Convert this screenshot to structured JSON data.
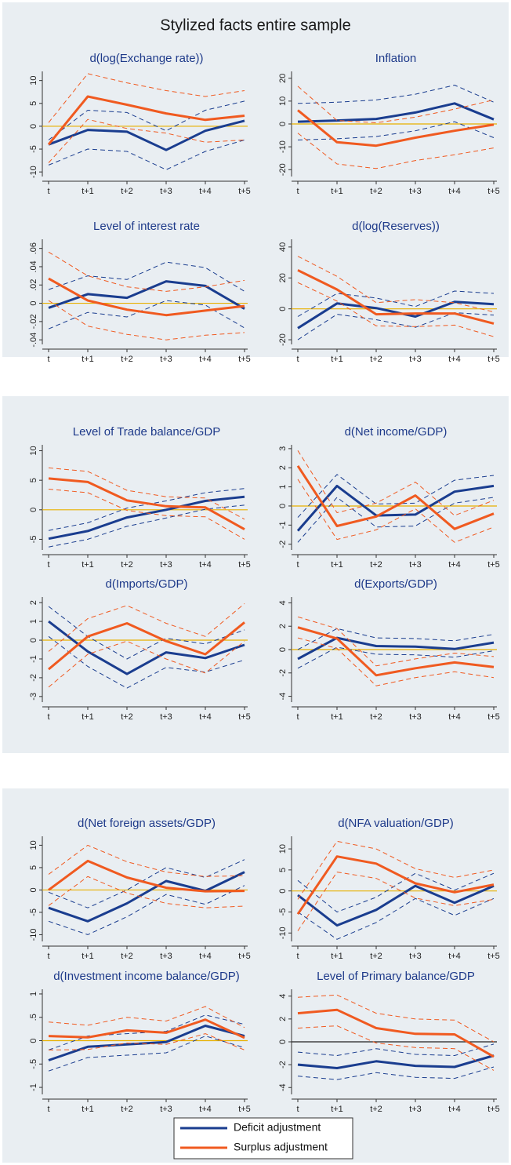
{
  "title": "Stylized facts entire sample",
  "legend": [
    {
      "name": "Deficit adjustment",
      "color": "#1a3d8f"
    },
    {
      "name": "Surplus adjustment",
      "color": "#f05a20"
    }
  ],
  "chart_data": [
    {
      "type": "line",
      "title": "d(log(Exchange rate))",
      "categories": [
        "t",
        "t+1",
        "t+2",
        "t+3",
        "t+4",
        "t+5"
      ],
      "ylim": [
        -11,
        12
      ],
      "yticks": [
        -10,
        -5,
        0,
        5,
        10
      ],
      "hline": {
        "value": 0,
        "color": "#e8b000"
      },
      "series": [
        {
          "values": [
            -4,
            -0.8,
            -1.2,
            -5.2,
            -1,
            1.2
          ],
          "upper": [
            -3,
            3.5,
            3,
            -1,
            3.5,
            5.5
          ],
          "lower": [
            -8.5,
            -5,
            -5.5,
            -9.5,
            -5.5,
            -3
          ]
        },
        {
          "values": [
            -4,
            6.5,
            4.7,
            2.8,
            1.4,
            2.3
          ],
          "upper": [
            0.8,
            11.5,
            9.5,
            7.8,
            6.5,
            7.8
          ],
          "lower": [
            -8,
            1.5,
            -0.5,
            -1.5,
            -3.5,
            -3
          ]
        }
      ]
    },
    {
      "type": "line",
      "title": "Inflation",
      "categories": [
        "t",
        "t+1",
        "t+2",
        "t+3",
        "t+4",
        "t+5"
      ],
      "ylim": [
        -23,
        23
      ],
      "yticks": [
        -20,
        -10,
        0,
        10,
        20
      ],
      "hline": {
        "value": 0,
        "color": "#e8b000"
      },
      "series": [
        {
          "values": [
            1,
            1.5,
            2.2,
            5,
            9,
            2
          ],
          "upper": [
            9,
            9.5,
            10.5,
            13,
            17,
            9.5
          ],
          "lower": [
            -7,
            -6.5,
            -5.5,
            -3,
            1,
            -6
          ]
        },
        {
          "values": [
            6,
            -8,
            -9.5,
            -6,
            -3,
            -0.3
          ],
          "upper": [
            16.5,
            1.5,
            0.5,
            3,
            6.5,
            10.5
          ],
          "lower": [
            -4,
            -17.5,
            -19.5,
            -16,
            -13.5,
            -10.5
          ]
        }
      ]
    },
    {
      "type": "line",
      "title": "Level of interest rate",
      "categories": [
        "t",
        "t+1",
        "t+2",
        "t+3",
        "t+4",
        "t+5"
      ],
      "ylim": [
        -0.045,
        0.07
      ],
      "yticks": [
        {
          "value": -0.04,
          "label": "-.04"
        },
        {
          "value": -0.02,
          "label": "-.02"
        },
        0,
        {
          "value": 0.02,
          "label": ".02"
        },
        {
          "value": 0.04,
          "label": ".04"
        },
        {
          "value": 0.06,
          "label": ".06"
        }
      ],
      "hline": {
        "value": 0,
        "color": "#e8b000"
      },
      "series": [
        {
          "values": [
            -0.005,
            0.01,
            0.006,
            0.024,
            0.019,
            -0.006
          ],
          "upper": [
            0.015,
            0.03,
            0.026,
            0.045,
            0.039,
            0.013
          ],
          "lower": [
            -0.028,
            -0.01,
            -0.015,
            0.003,
            -0.002,
            -0.027
          ]
        },
        {
          "values": [
            0.027,
            0.003,
            -0.007,
            -0.013,
            -0.008,
            -0.003
          ],
          "upper": [
            0.056,
            0.03,
            0.018,
            0.013,
            0.018,
            0.025
          ],
          "lower": [
            0.003,
            -0.025,
            -0.034,
            -0.04,
            -0.035,
            -0.032
          ]
        }
      ]
    },
    {
      "type": "line",
      "title": "d(log(Reserves))",
      "categories": [
        "t",
        "t+1",
        "t+2",
        "t+3",
        "t+4",
        "t+5"
      ],
      "ylim": [
        -23,
        45
      ],
      "yticks": [
        -20,
        0,
        20,
        40
      ],
      "hline": {
        "value": 0,
        "color": "#e8b000"
      },
      "series": [
        {
          "values": [
            -12.5,
            3.5,
            0.5,
            -5,
            4.5,
            3
          ],
          "upper": [
            -5,
            10,
            7,
            1.5,
            11.5,
            10
          ],
          "lower": [
            -20,
            -3.5,
            -7,
            -12,
            -2.5,
            -4
          ]
        },
        {
          "values": [
            25,
            12.5,
            -3.5,
            -3,
            -3,
            -9.5
          ],
          "upper": [
            34,
            21,
            4,
            6,
            4,
            -2
          ],
          "lower": [
            17,
            5,
            -11,
            -11.5,
            -10.5,
            -18
          ]
        }
      ]
    },
    {
      "type": "line",
      "title": "Level of Trade balance/GDP",
      "categories": [
        "t",
        "t+1",
        "t+2",
        "t+3",
        "t+4",
        "t+5"
      ],
      "ylim": [
        -6.8,
        11
      ],
      "yticks": [
        -5,
        0,
        5,
        10
      ],
      "hline": {
        "value": 0,
        "color": "#e8b000"
      },
      "series": [
        {
          "values": [
            -4.9,
            -3.6,
            -1.3,
            0,
            1.5,
            2.2
          ],
          "upper": [
            -3.5,
            -2.2,
            0.3,
            1.5,
            2.9,
            3.6
          ],
          "lower": [
            -6.3,
            -5,
            -2.8,
            -1.4,
            0.1,
            0.8
          ]
        },
        {
          "values": [
            5.3,
            4.7,
            1.6,
            0.6,
            0.4,
            -3.3
          ],
          "upper": [
            7.1,
            6.5,
            3.3,
            2.2,
            2,
            -1.6
          ],
          "lower": [
            3.5,
            2.9,
            -0.1,
            -1,
            -1.2,
            -5
          ]
        }
      ]
    },
    {
      "type": "line",
      "title": "d(Net income/GDP)",
      "categories": [
        "t",
        "t+1",
        "t+2",
        "t+3",
        "t+4",
        "t+5"
      ],
      "ylim": [
        -2.3,
        3.2
      ],
      "yticks": [
        -2,
        -1,
        0,
        1,
        2,
        3
      ],
      "hline": {
        "value": 0,
        "color": "#e8b000"
      },
      "series": [
        {
          "values": [
            -1.3,
            1.05,
            -0.5,
            -0.45,
            0.75,
            1.05
          ],
          "upper": [
            -0.6,
            1.65,
            0.1,
            0.15,
            1.35,
            1.6
          ],
          "lower": [
            -1.9,
            0.45,
            -1.1,
            -1.05,
            0.15,
            0.45
          ]
        },
        {
          "values": [
            2.1,
            -1.05,
            -0.55,
            0.55,
            -1.2,
            -0.4
          ],
          "upper": [
            2.9,
            -0.35,
            0.15,
            1.25,
            -0.5,
            0.3
          ],
          "lower": [
            1.4,
            -1.75,
            -1.25,
            -0.15,
            -1.9,
            -1.1
          ]
        }
      ]
    },
    {
      "type": "line",
      "title": "d(Imports/GDP)",
      "categories": [
        "t",
        "t+1",
        "t+2",
        "t+3",
        "t+4",
        "t+5"
      ],
      "ylim": [
        -3.3,
        2.3
      ],
      "yticks": [
        -3,
        -2,
        -1,
        0,
        1,
        2
      ],
      "hline": {
        "value": 0,
        "color": "#e8b000"
      },
      "series": [
        {
          "values": [
            1,
            -0.6,
            -1.8,
            -0.65,
            -0.95,
            -0.25
          ],
          "upper": [
            1.8,
            0.2,
            -1,
            0.1,
            -0.2,
            0.55
          ],
          "lower": [
            0.2,
            -1.4,
            -2.55,
            -1.45,
            -1.7,
            -1.05
          ]
        },
        {
          "values": [
            -1.55,
            0.2,
            0.9,
            -0.05,
            -0.75,
            0.95
          ],
          "upper": [
            -0.6,
            1.15,
            1.85,
            0.9,
            0.2,
            1.95
          ],
          "lower": [
            -2.5,
            -0.75,
            -0.05,
            -1,
            -1.75,
            -0.05
          ]
        }
      ]
    },
    {
      "type": "line",
      "title": "d(Exports/GDP)",
      "categories": [
        "t",
        "t+1",
        "t+2",
        "t+3",
        "t+4",
        "t+5"
      ],
      "ylim": [
        -4.5,
        4.5
      ],
      "yticks": [
        -4,
        -2,
        0,
        2,
        4
      ],
      "hline": {
        "value": 0,
        "color": "#e8b000"
      },
      "series": [
        {
          "values": [
            -0.8,
            1,
            0.3,
            0.25,
            0.05,
            0.6
          ],
          "upper": [
            0,
            1.8,
            1,
            0.95,
            0.75,
            1.3
          ],
          "lower": [
            -1.6,
            0.2,
            -0.4,
            -0.45,
            -0.65,
            -0.1
          ]
        },
        {
          "values": [
            1.9,
            0.95,
            -2.2,
            -1.6,
            -1.1,
            -1.5
          ],
          "upper": [
            2.8,
            1.8,
            -1.4,
            -0.8,
            -0.3,
            -0.6
          ],
          "lower": [
            1,
            0.1,
            -3.1,
            -2.4,
            -1.9,
            -2.4
          ]
        }
      ]
    },
    {
      "type": "line",
      "title": "d(Net foreign assets/GDP)",
      "categories": [
        "t",
        "t+1",
        "t+2",
        "t+3",
        "t+4",
        "t+5"
      ],
      "ylim": [
        -11.5,
        12
      ],
      "yticks": [
        -10,
        -5,
        0,
        5,
        10
      ],
      "hline": {
        "value": 0,
        "color": "#e8b000"
      },
      "series": [
        {
          "values": [
            -4,
            -7,
            -3,
            2,
            -0.2,
            4
          ],
          "upper": [
            -0.5,
            -4,
            0,
            5,
            2.8,
            6.8
          ],
          "lower": [
            -7,
            -10,
            -6,
            -1,
            -3.2,
            1
          ]
        },
        {
          "values": [
            0,
            6.5,
            2.8,
            0.5,
            -0.3,
            -0.2
          ],
          "upper": [
            3.5,
            10,
            6.3,
            4,
            3,
            3.2
          ],
          "lower": [
            -3.5,
            3,
            -0.7,
            -3,
            -4,
            -3.6
          ]
        }
      ]
    },
    {
      "type": "line",
      "title": "d(NFA valuation/GDP)",
      "categories": [
        "t",
        "t+1",
        "t+2",
        "t+3",
        "t+4",
        "t+5"
      ],
      "ylim": [
        -12,
        13
      ],
      "yticks": [
        -10,
        -5,
        0,
        5,
        10
      ],
      "hline": {
        "value": 0,
        "color": "#e8b000"
      },
      "series": [
        {
          "values": [
            -1,
            -8.2,
            -4.5,
            1.2,
            -2.8,
            1.2
          ],
          "upper": [
            2.5,
            -5,
            -1.5,
            4.2,
            0.2,
            4.2
          ],
          "lower": [
            -5,
            -11.5,
            -7.5,
            -1.8,
            -5.8,
            -1.8
          ]
        },
        {
          "values": [
            -5.5,
            8.2,
            6.5,
            1.8,
            -0.3,
            1.5
          ],
          "upper": [
            -2,
            11.8,
            10,
            5.3,
            3.2,
            5
          ],
          "lower": [
            -9.5,
            4.5,
            3,
            -1.7,
            -3.5,
            -2
          ]
        }
      ]
    },
    {
      "type": "line",
      "title": "d(Investment income balance/GDP)",
      "categories": [
        "t",
        "t+1",
        "t+2",
        "t+3",
        "t+4",
        "t+5"
      ],
      "ylim": [
        -1.15,
        1.1
      ],
      "yticks": [
        -1,
        {
          "value": -0.5,
          "label": "-.5"
        },
        0,
        {
          "value": 0.5,
          "label": ".5"
        },
        1
      ],
      "hline": {
        "value": 0,
        "color": "#e8b000"
      },
      "series": [
        {
          "values": [
            -0.42,
            -0.13,
            -0.08,
            -0.03,
            0.32,
            0.1
          ],
          "upper": [
            -0.2,
            0.1,
            0.15,
            0.2,
            0.55,
            0.35
          ],
          "lower": [
            -0.65,
            -0.36,
            -0.31,
            -0.26,
            0.1,
            -0.15
          ]
        },
        {
          "values": [
            0.1,
            0.07,
            0.22,
            0.17,
            0.45,
            0.06
          ],
          "upper": [
            0.4,
            0.33,
            0.5,
            0.42,
            0.73,
            0.28
          ],
          "lower": [
            -0.2,
            -0.19,
            -0.05,
            -0.08,
            0.15,
            -0.2
          ]
        }
      ]
    },
    {
      "type": "line",
      "title": "Level of Primary balance/GDP",
      "categories": [
        "t",
        "t+1",
        "t+2",
        "t+3",
        "t+4",
        "t+5"
      ],
      "ylim": [
        -4.6,
        4.6
      ],
      "yticks": [
        -4,
        -2,
        0,
        2,
        4
      ],
      "hline": {
        "value": 0,
        "color": "#222222"
      },
      "series": [
        {
          "values": [
            -2,
            -2.3,
            -1.7,
            -2.1,
            -2.2,
            -1.2
          ],
          "upper": [
            -0.9,
            -1.2,
            -0.6,
            -1.1,
            -1.2,
            -0.2
          ],
          "lower": [
            -3,
            -3.3,
            -2.7,
            -3.1,
            -3.2,
            -2.2
          ]
        },
        {
          "values": [
            2.5,
            2.8,
            1.2,
            0.7,
            0.65,
            -1.3
          ],
          "upper": [
            3.9,
            4.1,
            2.5,
            2,
            1.9,
            0
          ],
          "lower": [
            1.2,
            1.4,
            -0.1,
            -0.5,
            -0.6,
            -2.5
          ]
        }
      ]
    }
  ]
}
